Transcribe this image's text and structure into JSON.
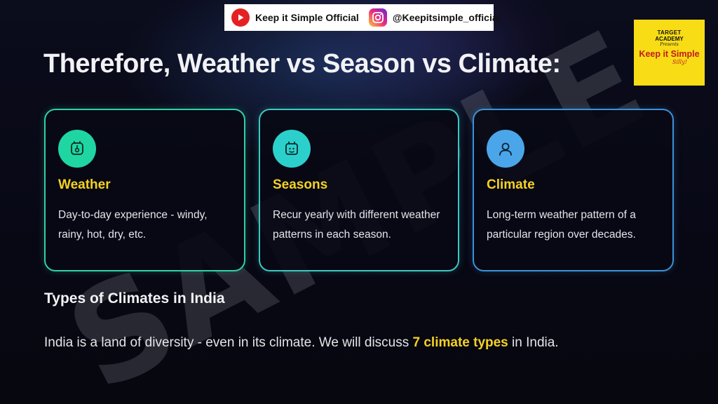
{
  "banner": {
    "youtube_label": "Keep it Simple Official",
    "instagram_label": "@Keepitsimple_official",
    "youtube_icon": "youtube-icon",
    "instagram_icon": "instagram-icon"
  },
  "brand": {
    "line1": "TARGET",
    "line2": "ACADEMY",
    "presents": "Presents",
    "main": "Keep it Simple",
    "tag": "Silly!",
    "background": "#f7dc16"
  },
  "title": "Therefore, Weather vs Season vs Climate:",
  "cards": [
    {
      "icon": "thermometer-icon",
      "heading": "Weather",
      "body": "Day-to-day experience - windy, rainy, hot, dry, etc.",
      "border_color": "#2fd1a6"
    },
    {
      "icon": "calendar-icon",
      "heading": "Seasons",
      "body": "Recur yearly with different weather patterns in each season.",
      "border_color": "#3cc7c2"
    },
    {
      "icon": "person-icon",
      "heading": "Climate",
      "body": "Long-term weather pattern of a particular region over decades.",
      "border_color": "#3b91d9"
    }
  ],
  "section": {
    "title": "Types of Climates in India",
    "text_before": "India is a land of diversity - even in its climate. We will discuss ",
    "highlight": "7 climate types",
    "text_after": " in India."
  },
  "watermark": "SAMPLE",
  "colors": {
    "accent_yellow": "#f5d223",
    "background": "#0b0c1c"
  }
}
